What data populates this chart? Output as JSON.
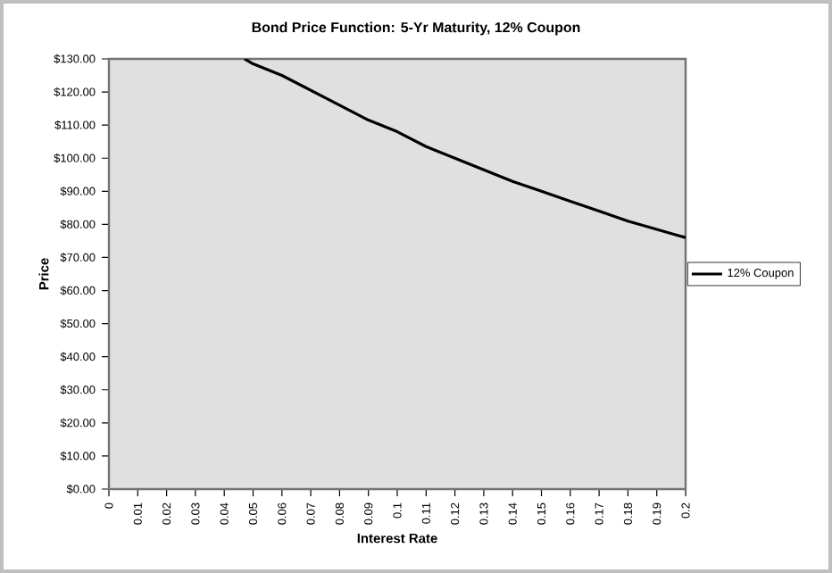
{
  "chart_data": {
    "type": "line",
    "title": "Bond Price Function: 5-Yr Maturity, 12% Coupon",
    "xlabel": "Interest Rate",
    "ylabel": "Price",
    "x": [
      0.047,
      0.05,
      0.06,
      0.07,
      0.08,
      0.09,
      0.1,
      0.11,
      0.12,
      0.13,
      0.14,
      0.15,
      0.16,
      0.17,
      0.18,
      0.19,
      0.2
    ],
    "series": [
      {
        "name": "12% Coupon",
        "color": "#000000",
        "values": [
          130,
          128.5,
          125,
          120.5,
          116,
          111.5,
          108,
          103.5,
          100,
          96.5,
          93,
          90,
          87,
          84,
          81,
          78.5,
          76
        ]
      }
    ],
    "xlim": [
      0,
      0.2
    ],
    "xticks": [
      0,
      0.01,
      0.02,
      0.03,
      0.04,
      0.05,
      0.06,
      0.07,
      0.08,
      0.09,
      0.1,
      0.11,
      0.12,
      0.13,
      0.14,
      0.15,
      0.16,
      0.17,
      0.18,
      0.19,
      0.2
    ],
    "ylim": [
      0,
      130
    ],
    "yticks": [
      {
        "value": 0,
        "label": "$0.00"
      },
      {
        "value": 10,
        "label": "$10.00"
      },
      {
        "value": 20,
        "label": "$20.00"
      },
      {
        "value": 30,
        "label": "$30.00"
      },
      {
        "value": 40,
        "label": "$40.00"
      },
      {
        "value": 50,
        "label": "$50.00"
      },
      {
        "value": 60,
        "label": "$60.00"
      },
      {
        "value": 70,
        "label": "$70.00"
      },
      {
        "value": 80,
        "label": "$80.00"
      },
      {
        "value": 90,
        "label": "$90.00"
      },
      {
        "value": 100,
        "label": "$100.00"
      },
      {
        "value": 110,
        "label": "$110.00"
      },
      {
        "value": 120,
        "label": "$120.00"
      },
      {
        "value": 130,
        "label": "$130.00"
      }
    ],
    "legend": "right",
    "grid": false,
    "marker": "none",
    "line_style": "solid"
  }
}
